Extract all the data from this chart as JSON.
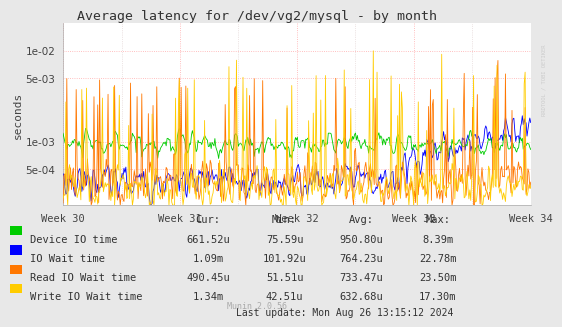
{
  "title": "Average latency for /dev/vg2/mysql - by month",
  "ylabel": "seconds",
  "xlabel_ticks": [
    "Week 30",
    "Week 31",
    "Week 32",
    "Week 33",
    "Week 34"
  ],
  "bg_color": "#e8e8e8",
  "plot_bg_color": "#ffffff",
  "colors": {
    "device_io": "#00cc00",
    "io_wait": "#0000ff",
    "read_io": "#ff7700",
    "write_io": "#ffcc00"
  },
  "legend": [
    {
      "label": "Device IO time",
      "color": "#00cc00"
    },
    {
      "label": "IO Wait time",
      "color": "#0000ff"
    },
    {
      "label": "Read IO Wait time",
      "color": "#ff7700"
    },
    {
      "label": "Write IO Wait time",
      "color": "#ffcc00"
    }
  ],
  "table_headers": [
    "Cur:",
    "Min:",
    "Avg:",
    "Max:"
  ],
  "table_data": [
    [
      "661.52u",
      "75.59u",
      "950.80u",
      "8.39m"
    ],
    [
      "1.09m",
      "101.92u",
      "764.23u",
      "22.78m"
    ],
    [
      "490.45u",
      "51.51u",
      "733.47u",
      "23.50m"
    ],
    [
      "1.34m",
      "42.51u",
      "632.68u",
      "17.30m"
    ]
  ],
  "last_update": "Last update: Mon Aug 26 13:15:12 2024",
  "munin_version": "Munin 2.0.56",
  "rrdtool_label": "RRDTOOL / TOBI OETIKER",
  "ylim_min": 0.0002,
  "ylim_max": 0.02,
  "yticks": [
    0.0005,
    0.001,
    0.005,
    0.01
  ],
  "ytick_labels": [
    "5e-04",
    "1e-03",
    "5e-03",
    "1e-02"
  ],
  "num_points": 500
}
